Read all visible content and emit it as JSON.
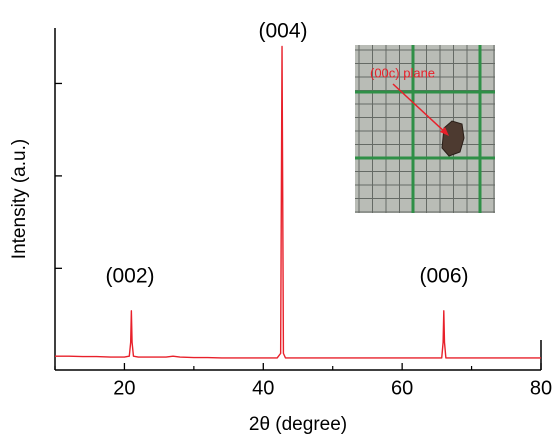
{
  "chart_data": {
    "type": "line",
    "x_label": "2θ (degree)",
    "y_label": "Intensity (a.u.)",
    "xlim": [
      10,
      80
    ],
    "xticks": [
      20,
      40,
      60,
      80
    ],
    "xminorticks": [
      10,
      30,
      50,
      70
    ],
    "ylim": [
      -0.1,
      3.6
    ],
    "yticks": [
      1,
      2,
      3
    ],
    "series": [
      {
        "color": "#e8202a",
        "x": [
          10,
          12,
          14,
          16,
          18,
          20,
          20.7,
          20.9,
          21.0,
          21.1,
          21.3,
          22,
          24,
          26,
          27,
          28,
          30,
          32,
          34,
          36,
          38,
          40,
          42,
          42.5,
          42.7,
          42.9,
          43.2,
          44,
          46,
          48,
          50,
          52,
          54,
          56,
          58,
          60,
          62,
          64,
          65.7,
          65.9,
          66.0,
          66.1,
          66.3,
          68,
          70,
          72,
          74,
          76,
          78,
          80
        ],
        "values": [
          0.05,
          0.05,
          0.045,
          0.045,
          0.04,
          0.04,
          0.05,
          0.2,
          0.54,
          0.2,
          0.05,
          0.04,
          0.04,
          0.04,
          0.05,
          0.04,
          0.035,
          0.035,
          0.03,
          0.03,
          0.03,
          0.03,
          0.03,
          0.08,
          3.4,
          0.08,
          0.03,
          0.03,
          0.03,
          0.03,
          0.03,
          0.03,
          0.03,
          0.03,
          0.03,
          0.03,
          0.03,
          0.03,
          0.03,
          0.2,
          0.54,
          0.2,
          0.03,
          0.03,
          0.03,
          0.03,
          0.03,
          0.03,
          0.03,
          0.03
        ]
      }
    ],
    "annotations": [
      "(002)",
      "(004)",
      "(006)"
    ],
    "inset_label": "(00c) plane"
  }
}
